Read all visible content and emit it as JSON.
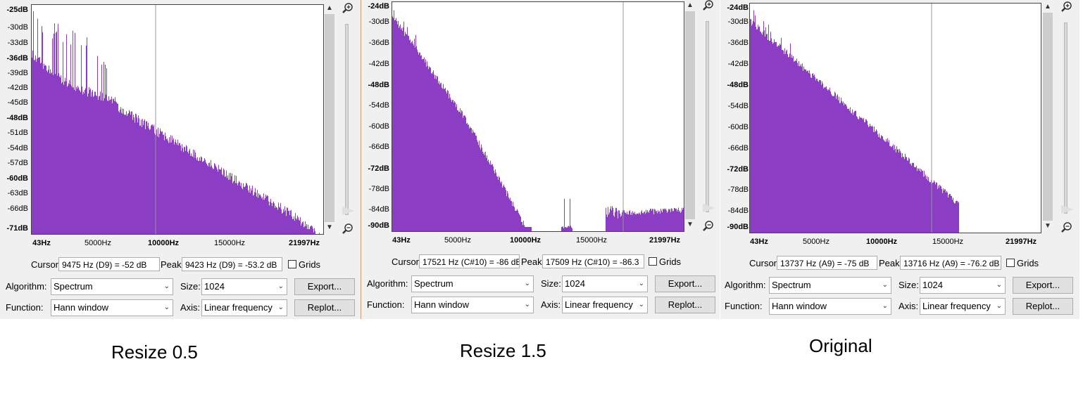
{
  "panels": [
    {
      "id": "resize-0-5",
      "y_labels": [
        "-25dB",
        "-30dB",
        "-33dB",
        "-36dB",
        "-39dB",
        "-42dB",
        "-45dB",
        "-48dB",
        "-51dB",
        "-54dB",
        "-57dB",
        "-60dB",
        "-63dB",
        "-66dB",
        "-71dB"
      ],
      "x_labels": [
        "43Hz",
        "5000Hz",
        "10000Hz",
        "15000Hz",
        "21997Hz"
      ],
      "cursor_label": "Cursor:",
      "cursor_value": "9475 Hz (D9) = -52 dB",
      "peak_label": "Peak:",
      "peak_value": "9423 Hz (D9) = -53.2 dB",
      "grids_label": "Grids",
      "algorithm_label": "Algorithm:",
      "algorithm_value": "Spectrum",
      "size_label": "Size:",
      "size_value": "1024",
      "function_label": "Function:",
      "function_value": "Hann window",
      "axis_label": "Axis:",
      "axis_value": "Linear frequency",
      "export_label": "Export...",
      "replot_label": "Replot...",
      "caption": "Resize 0.5"
    },
    {
      "id": "resize-1-5",
      "y_labels": [
        "-24dB",
        "-30dB",
        "-36dB",
        "-42dB",
        "-48dB",
        "-54dB",
        "-60dB",
        "-66dB",
        "-72dB",
        "-78dB",
        "-84dB",
        "-90dB"
      ],
      "x_labels": [
        "43Hz",
        "5000Hz",
        "10000Hz",
        "15000Hz",
        "21997Hz"
      ],
      "cursor_label": "Cursor:",
      "cursor_value": "17521 Hz (C#10) = -86 dB",
      "peak_label": "Peak:",
      "peak_value": "17509 Hz (C#10) = -86.3",
      "grids_label": "Grids",
      "algorithm_label": "Algorithm:",
      "algorithm_value": "Spectrum",
      "size_label": "Size:",
      "size_value": "1024",
      "function_label": "Function:",
      "function_value": "Hann window",
      "axis_label": "Axis:",
      "axis_value": "Linear frequency",
      "export_label": "Export...",
      "replot_label": "Replot...",
      "caption": "Resize 1.5"
    },
    {
      "id": "original",
      "y_labels": [
        "-24dB",
        "-30dB",
        "-36dB",
        "-42dB",
        "-48dB",
        "-54dB",
        "-60dB",
        "-66dB",
        "-72dB",
        "-78dB",
        "-84dB",
        "-90dB"
      ],
      "x_labels": [
        "43Hz",
        "5000Hz",
        "10000Hz",
        "15000Hz",
        "21997Hz"
      ],
      "cursor_label": "Cursor:",
      "cursor_value": "13737 Hz (A9) = -75 dB",
      "peak_label": "Peak:",
      "peak_value": "13716 Hz (A9) = -76.2 dB",
      "grids_label": "Grids",
      "algorithm_label": "Algorithm:",
      "algorithm_value": "Spectrum",
      "size_label": "Size:",
      "size_value": "1024",
      "function_label": "Function:",
      "function_value": "Hann window",
      "axis_label": "Axis:",
      "axis_value": "Linear frequency",
      "export_label": "Export...",
      "replot_label": "Replot...",
      "caption": "Original"
    }
  ],
  "colors": {
    "spectrum_fill": "#8b3dc4",
    "cursor_line": "#999999",
    "panel_bg": "#f0f0f0"
  },
  "icons": {
    "zoom_in": "zoom-in-icon",
    "zoom_out": "zoom-out-icon"
  }
}
